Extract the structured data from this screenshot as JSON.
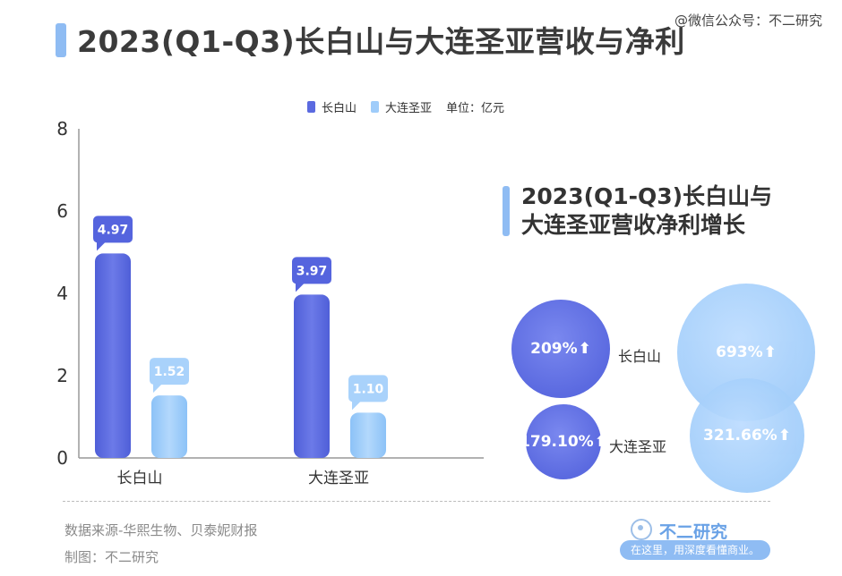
{
  "header": {
    "title": "2023(Q1-Q3)长白山与大连圣亚营收与净利",
    "watermark": "@微信公众号：不二研究"
  },
  "legend": {
    "items": [
      "长白山",
      "大连圣亚"
    ],
    "unit": "单位：亿元"
  },
  "colors": {
    "dark_blue": "#5b6ae0",
    "light_blue": "#9fccfa",
    "accent_bar": "#8fbcf3"
  },
  "chart_data": [
    {
      "type": "bar",
      "categories": [
        "长白山",
        "大连圣亚"
      ],
      "series": [
        {
          "name": "长白山",
          "values": [
            4.97,
            3.97
          ]
        },
        {
          "name": "大连圣亚",
          "values": [
            1.52,
            1.1
          ]
        }
      ],
      "ylim": [
        0,
        8
      ],
      "yticks": [
        0,
        2,
        4,
        6,
        8
      ],
      "data_labels": [
        "4.97",
        "1.52",
        "3.97",
        "1.10"
      ],
      "legend_position": "top",
      "unit": "单位：亿元",
      "grid": false
    },
    {
      "type": "bubble",
      "title": "2023(Q1-Q3)长白山与大连圣亚营收净利增长",
      "rows": [
        {
          "company": "长白山",
          "values": [
            209,
            693
          ],
          "labels": [
            "209%",
            "693%"
          ]
        },
        {
          "company": "大连圣亚",
          "values": [
            179.1,
            321.66
          ],
          "labels": [
            "179.10%",
            "321.66%"
          ]
        }
      ]
    }
  ],
  "growth": {
    "title_line1": "2023(Q1-Q3)长白山与",
    "title_line2": "大连圣亚营收净利增长",
    "arrow": "⬆"
  },
  "footer": {
    "source": "数据来源-华熙生物、贝泰妮财报",
    "maker": "制图：不二研究"
  },
  "logo": {
    "name": "不二研究",
    "slogan": "在这里，用深度看懂商业。"
  }
}
